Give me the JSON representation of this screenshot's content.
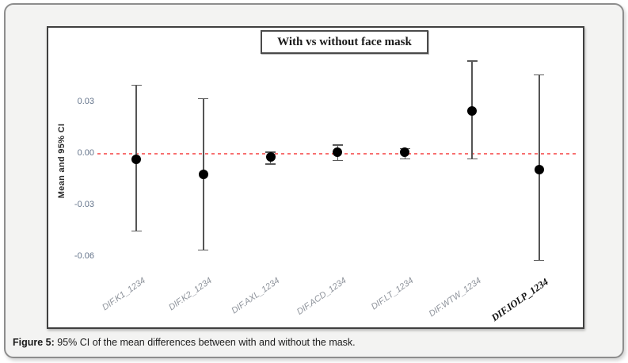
{
  "panel": {
    "caption": {
      "label": "Figure 5:",
      "text": "95% CI of the mean differences between with and without the mask."
    }
  },
  "chart_data": {
    "type": "errorbar",
    "title": "With vs without face mask",
    "ylabel": "Mean and 95% CI",
    "xlabel": "",
    "categories": [
      "DIF.K1_1234",
      "DIF.K2_1234",
      "DIF.AXL_1234",
      "DIF.ACD_1234",
      "DIF.LT_1234",
      "DIF.WTW_1234",
      "DIF.IOLP_1234"
    ],
    "series": [
      {
        "name": "Mean and 95% CI",
        "means": [
          -0.003,
          -0.012,
          -0.002,
          0.001,
          0.001,
          0.025,
          -0.009
        ],
        "ci_upper": [
          0.04,
          0.032,
          0.001,
          0.005,
          0.003,
          0.054,
          0.046
        ],
        "ci_lower": [
          -0.045,
          -0.056,
          -0.006,
          -0.004,
          -0.003,
          -0.003,
          -0.062
        ]
      }
    ],
    "yticks": [
      0.03,
      0,
      -0.03,
      -0.06
    ],
    "ytick_labels": [
      "0.03",
      "0.00",
      "-0.03",
      "-0.06"
    ],
    "ylim": [
      -0.073,
      0.059
    ],
    "grid": false,
    "legend": false,
    "reference_line": {
      "y": 0,
      "style": "dashed",
      "color": "#f87070"
    },
    "highlighted_category_index": 6,
    "marker": "filled-circle"
  },
  "colors": {
    "accent_red": "#f87070",
    "marker": "#000000",
    "errorbar": "#555555",
    "ytick_text": "#64748b",
    "xtick_text": "#8e939b",
    "frame_border": "#3f3f3f",
    "panel_border": "#8d8d8d",
    "panel_bg": "#f3f3f2"
  }
}
